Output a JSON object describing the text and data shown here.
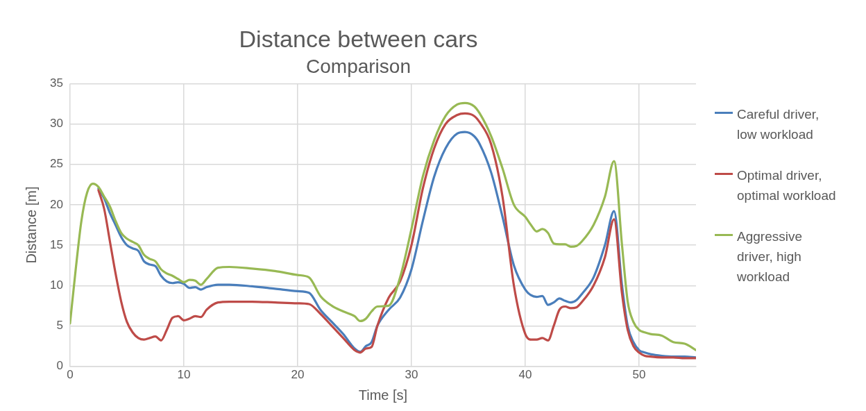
{
  "chart_data": {
    "type": "line",
    "title": "Distance between cars",
    "subtitle": "Comparison",
    "xlabel": "Time [s]",
    "ylabel": "Distance [m]",
    "x": [
      0,
      0.5,
      1,
      1.5,
      2,
      2.5,
      3,
      3.5,
      4,
      4.5,
      5,
      5.5,
      6,
      6.5,
      7,
      7.5,
      8,
      8.5,
      9,
      9.5,
      10,
      10.5,
      11,
      11.5,
      12,
      13,
      14,
      16,
      18,
      20,
      21,
      22,
      23,
      24,
      25,
      25.5,
      26,
      26.5,
      27,
      28,
      29,
      30,
      31,
      32,
      33,
      34,
      34.7,
      35.5,
      36,
      37,
      38,
      39,
      40,
      40.5,
      41,
      41.5,
      42,
      42.5,
      43,
      43.5,
      44,
      44.5,
      45,
      46,
      47,
      47.8,
      48.5,
      49,
      49.5,
      50,
      50.5,
      51,
      52,
      53,
      54,
      55
    ],
    "series": [
      {
        "name": "Careful driver, low workload",
        "color": "#4a7ebb",
        "values": [
          null,
          null,
          null,
          null,
          null,
          22,
          20.8,
          19,
          17.5,
          16,
          15,
          14.6,
          14.3,
          13,
          12.6,
          12.4,
          11.2,
          10.5,
          10.3,
          10.4,
          10.2,
          9.7,
          9.8,
          9.5,
          9.8,
          10.1,
          10.1,
          9.9,
          9.6,
          9.3,
          9.1,
          7,
          5.5,
          4,
          2.2,
          1.8,
          2.5,
          3,
          5,
          7,
          8.5,
          12,
          18,
          23.5,
          27,
          28.8,
          29,
          28.5,
          27.5,
          24,
          18.5,
          12.5,
          9.5,
          8.8,
          8.6,
          8.7,
          7.6,
          7.9,
          8.4,
          8.1,
          7.9,
          8.2,
          9,
          11,
          15,
          19.2,
          10,
          5,
          3,
          2,
          1.7,
          1.5,
          1.3,
          1.2,
          1.2,
          1.1
        ]
      },
      {
        "name": "Optimal driver, optimal workload",
        "color": "#be4b48",
        "values": [
          null,
          null,
          null,
          null,
          null,
          21.8,
          19.5,
          15.5,
          11.5,
          8,
          5.5,
          4.2,
          3.5,
          3.3,
          3.5,
          3.7,
          3.2,
          4.5,
          6,
          6.2,
          5.7,
          5.9,
          6.2,
          6.1,
          7,
          7.9,
          8,
          8,
          7.9,
          7.8,
          7.7,
          6.5,
          5,
          3.5,
          2,
          1.7,
          2.2,
          2.4,
          5,
          8.5,
          10.5,
          15,
          22,
          27,
          30,
          31.1,
          31.3,
          31,
          30.2,
          27.5,
          21,
          10,
          4,
          3.3,
          3.3,
          3.5,
          3.2,
          5,
          7,
          7.4,
          7.2,
          7.3,
          8,
          10,
          13.5,
          18.2,
          9,
          4.5,
          2.5,
          1.7,
          1.3,
          1.2,
          1.1,
          1.1,
          1,
          1
        ]
      },
      {
        "name": "Aggressive driver, high workload",
        "color": "#98b954",
        "values": [
          5.3,
          12,
          18,
          21.5,
          22.6,
          22.2,
          21,
          19.8,
          18,
          16.5,
          15.8,
          15.4,
          15,
          13.8,
          13.3,
          13,
          12,
          11.5,
          11.2,
          10.8,
          10.4,
          10.7,
          10.6,
          10.1,
          10.8,
          12.2,
          12.3,
          12.1,
          11.8,
          11.3,
          11,
          8.7,
          7.5,
          6.8,
          6.2,
          5.6,
          5.9,
          6.8,
          7.4,
          7.5,
          11,
          17,
          23.5,
          28,
          31,
          32.4,
          32.6,
          32.2,
          31.3,
          28.5,
          24.5,
          20,
          18.5,
          17.5,
          16.7,
          17,
          16.5,
          15.2,
          15.1,
          15.1,
          14.8,
          14.9,
          15.5,
          17.5,
          21,
          25.4,
          15,
          8,
          5.5,
          4.5,
          4.2,
          4,
          3.8,
          3,
          2.8,
          2
        ]
      }
    ],
    "xlim": [
      0,
      55
    ],
    "xticks": [
      0,
      10,
      20,
      30,
      40,
      50
    ],
    "ylim": [
      0,
      35
    ],
    "yticks": [
      0,
      5,
      10,
      15,
      20,
      25,
      30,
      35
    ],
    "grid": true,
    "legend": "right",
    "marker": "none",
    "line_style": "solid"
  }
}
